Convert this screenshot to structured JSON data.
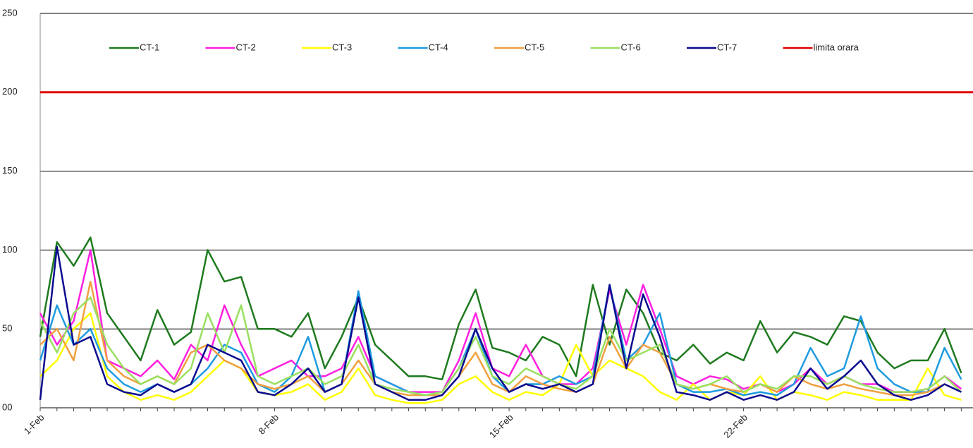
{
  "chart_data": {
    "type": "line",
    "categories": [
      "1-Feb",
      null,
      null,
      null,
      null,
      null,
      null,
      null,
      null,
      null,
      null,
      null,
      null,
      null,
      "8-Feb",
      null,
      null,
      null,
      null,
      null,
      null,
      null,
      null,
      null,
      null,
      null,
      null,
      null,
      "15-Feb",
      null,
      null,
      null,
      null,
      null,
      null,
      null,
      null,
      null,
      null,
      null,
      null,
      null,
      "22-Feb",
      null,
      null,
      null,
      null,
      null,
      null,
      null,
      null,
      null,
      null,
      null,
      null,
      null
    ],
    "series": [
      {
        "name": "CT-1",
        "color": "#1e7a1e",
        "values": [
          45,
          105,
          90,
          108,
          60,
          45,
          30,
          62,
          40,
          48,
          100,
          80,
          83,
          50,
          50,
          45,
          60,
          25,
          45,
          70,
          40,
          30,
          20,
          20,
          18,
          53,
          75,
          38,
          35,
          30,
          45,
          40,
          20,
          78,
          40,
          75,
          60,
          35,
          30,
          40,
          28,
          35,
          30,
          55,
          35,
          48,
          45,
          40,
          58,
          55,
          35,
          25,
          30,
          30,
          50,
          22
        ]
      },
      {
        "name": "CT-2",
        "color": "#ff1fe0",
        "values": [
          60,
          40,
          55,
          100,
          30,
          25,
          20,
          30,
          18,
          40,
          30,
          65,
          40,
          20,
          25,
          30,
          20,
          20,
          25,
          45,
          20,
          15,
          10,
          10,
          10,
          30,
          60,
          25,
          20,
          40,
          20,
          15,
          15,
          25,
          75,
          40,
          78,
          50,
          20,
          15,
          20,
          18,
          12,
          15,
          10,
          15,
          25,
          15,
          20,
          15,
          15,
          10,
          10,
          12,
          20,
          12
        ]
      },
      {
        "name": "CT-3",
        "color": "#ffff00",
        "values": [
          20,
          30,
          50,
          60,
          20,
          10,
          5,
          8,
          5,
          10,
          20,
          30,
          25,
          10,
          8,
          10,
          15,
          5,
          10,
          25,
          8,
          5,
          3,
          3,
          5,
          15,
          20,
          10,
          5,
          10,
          8,
          15,
          40,
          20,
          30,
          25,
          20,
          10,
          5,
          15,
          5,
          10,
          8,
          20,
          5,
          10,
          8,
          5,
          10,
          8,
          5,
          5,
          5,
          25,
          8,
          5
        ]
      },
      {
        "name": "CT-4",
        "color": "#1e9be0",
        "values": [
          30,
          65,
          40,
          50,
          25,
          15,
          10,
          15,
          10,
          15,
          25,
          40,
          35,
          15,
          10,
          20,
          45,
          10,
          15,
          74,
          20,
          15,
          10,
          8,
          10,
          25,
          50,
          20,
          10,
          15,
          15,
          20,
          15,
          20,
          78,
          30,
          40,
          60,
          15,
          10,
          10,
          12,
          8,
          10,
          8,
          15,
          38,
          20,
          25,
          58,
          25,
          15,
          10,
          10,
          38,
          18
        ]
      },
      {
        "name": "CT-5",
        "color": "#f0a040",
        "values": [
          40,
          50,
          30,
          80,
          30,
          20,
          15,
          20,
          15,
          35,
          40,
          30,
          25,
          15,
          12,
          15,
          20,
          10,
          15,
          30,
          15,
          10,
          8,
          8,
          8,
          20,
          35,
          15,
          10,
          20,
          15,
          12,
          10,
          15,
          45,
          25,
          40,
          35,
          15,
          12,
          15,
          12,
          10,
          15,
          10,
          20,
          15,
          12,
          15,
          12,
          10,
          8,
          8,
          10,
          15,
          10
        ]
      },
      {
        "name": "CT-6",
        "color": "#99e060",
        "values": [
          55,
          35,
          60,
          70,
          40,
          25,
          15,
          20,
          15,
          25,
          60,
          35,
          65,
          20,
          15,
          20,
          25,
          15,
          20,
          40,
          15,
          12,
          10,
          8,
          10,
          25,
          45,
          20,
          15,
          25,
          20,
          15,
          12,
          20,
          50,
          30,
          35,
          40,
          15,
          12,
          15,
          20,
          10,
          15,
          12,
          20,
          20,
          15,
          20,
          15,
          12,
          10,
          10,
          12,
          20,
          10
        ]
      },
      {
        "name": "CT-7",
        "color": "#0a0a90",
        "values": [
          5,
          102,
          40,
          45,
          15,
          10,
          8,
          15,
          10,
          15,
          40,
          35,
          30,
          10,
          8,
          15,
          25,
          10,
          15,
          70,
          15,
          10,
          5,
          5,
          8,
          20,
          50,
          25,
          10,
          15,
          12,
          15,
          10,
          15,
          78,
          25,
          72,
          45,
          10,
          8,
          5,
          10,
          5,
          8,
          5,
          10,
          25,
          12,
          20,
          30,
          15,
          8,
          5,
          8,
          15,
          10
        ]
      }
    ],
    "reference_lines": [
      {
        "name": "limita orara",
        "value": 200,
        "color": "#e00000"
      }
    ],
    "ylim": [
      0,
      250
    ],
    "yticks": [
      {
        "value": 0,
        "label": "00"
      },
      50,
      100,
      150,
      200,
      250
    ],
    "grid": true,
    "legend": "top"
  }
}
